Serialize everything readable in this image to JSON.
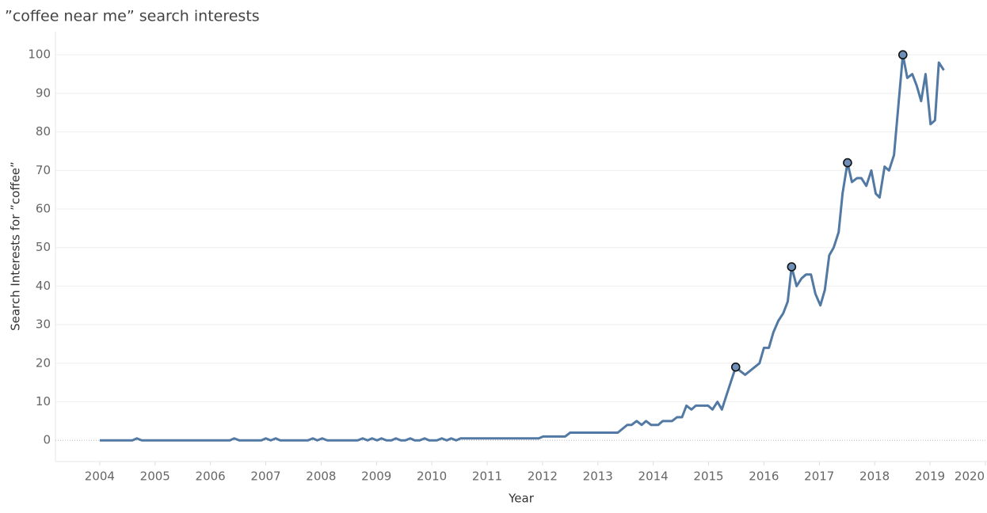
{
  "chart_data": {
    "type": "line",
    "title": "”coffee near me” search interests",
    "x_label": "Year",
    "y_label": "Search Interests for ”coffee”",
    "color": "#5279a3",
    "marker_color": "#6f8fb8",
    "grid": true,
    "x": [
      2004.0,
      2004.59,
      2004.67,
      2004.76,
      2006.35,
      2006.43,
      2006.52,
      2006.92,
      2007.0,
      2007.09,
      2007.18,
      2007.26,
      2007.76,
      2007.85,
      2007.93,
      2008.02,
      2008.11,
      2008.66,
      2008.75,
      2008.84,
      2008.92,
      2009.01,
      2009.09,
      2009.18,
      2009.27,
      2009.35,
      2009.44,
      2009.52,
      2009.61,
      2009.69,
      2009.78,
      2009.87,
      2009.95,
      2010.09,
      2010.18,
      2010.27,
      2010.35,
      2010.44,
      2010.52,
      2011.93,
      2012.01,
      2012.41,
      2012.5,
      2013.36,
      2013.53,
      2013.61,
      2013.7,
      2013.79,
      2013.87,
      2013.96,
      2014.09,
      2014.17,
      2014.34,
      2014.43,
      2014.52,
      2014.6,
      2014.69,
      2014.77,
      2014.99,
      2015.07,
      2015.16,
      2015.24,
      2015.33,
      2015.49,
      2015.57,
      2015.66,
      2015.92,
      2016.0,
      2016.09,
      2016.17,
      2016.26,
      2016.35,
      2016.43,
      2016.5,
      2016.59,
      2016.68,
      2016.76,
      2016.85,
      2016.93,
      2017.02,
      2017.1,
      2017.18,
      2017.26,
      2017.35,
      2017.42,
      2017.51,
      2017.59,
      2017.68,
      2017.76,
      2017.85,
      2017.94,
      2018.02,
      2018.09,
      2018.18,
      2018.26,
      2018.35,
      2018.51,
      2018.59,
      2018.68,
      2018.76,
      2018.84,
      2018.92,
      2019.01,
      2019.09,
      2019.16,
      2019.25
    ],
    "values": [
      0,
      0,
      0.5,
      0,
      0,
      0.5,
      0,
      0,
      0.5,
      0,
      0.5,
      0,
      0,
      0.5,
      0,
      0.5,
      0,
      0,
      0.5,
      0,
      0.5,
      0,
      0.5,
      0,
      0,
      0.5,
      0,
      0,
      0.5,
      0,
      0,
      0.5,
      0,
      0,
      0.5,
      0,
      0.5,
      0,
      0.5,
      0.5,
      1,
      1,
      2,
      2,
      4,
      4,
      5,
      4,
      5,
      4,
      4,
      5,
      5,
      6,
      6,
      9,
      8,
      9,
      9,
      8,
      10,
      8,
      12,
      19,
      18,
      17,
      20,
      24,
      24,
      28,
      31,
      33,
      36,
      45,
      40,
      42,
      43,
      43,
      38,
      35,
      39,
      48,
      50,
      54,
      64,
      72,
      67,
      68,
      68,
      66,
      70,
      64,
      63,
      71,
      70,
      74,
      100,
      94,
      95,
      92,
      88,
      95,
      82,
      83,
      98,
      96
    ],
    "marker_indices": [
      63,
      73,
      85,
      96
    ],
    "xlim": [
      2003.2,
      2020.03
    ],
    "xticks": [
      2004,
      2005,
      2006,
      2007,
      2008,
      2009,
      2010,
      2011,
      2012,
      2013,
      2014,
      2015,
      2016,
      2017,
      2018,
      2019,
      2020
    ],
    "ylim": [
      -5.5,
      106
    ],
    "yticks": [
      0,
      10,
      20,
      30,
      40,
      50,
      60,
      70,
      80,
      90,
      100
    ]
  }
}
